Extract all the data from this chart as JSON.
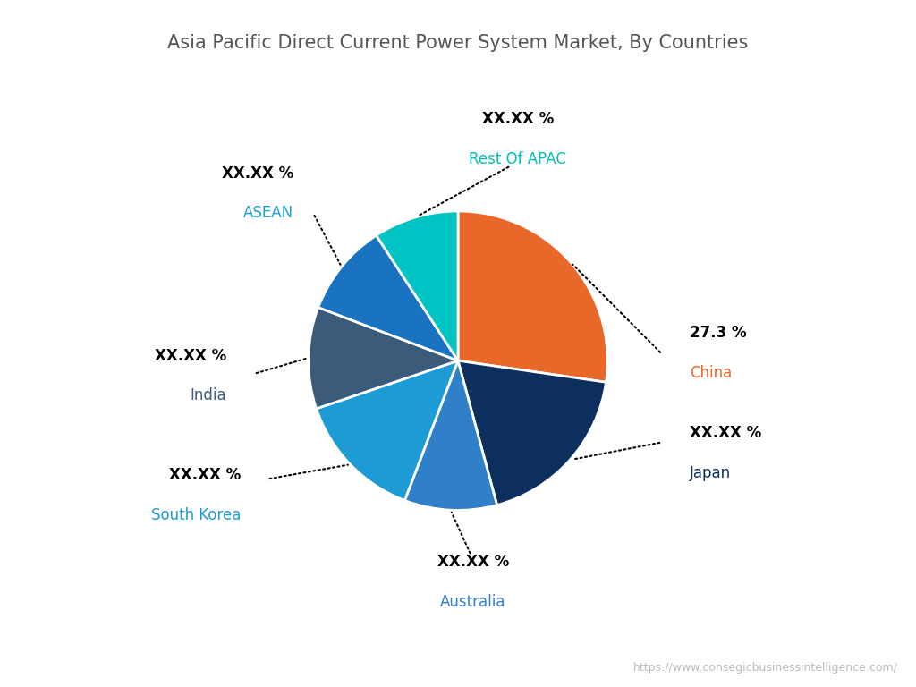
{
  "title": "Asia Pacific Direct Current Power System Market, By Countries",
  "watermark": "https://www.consegicbusinessintelligence.com/",
  "slices": [
    {
      "label": "China",
      "value": 27.3,
      "color": "#E8682A",
      "pct_text": "27.3 %",
      "label_color": "#E8682A"
    },
    {
      "label": "Japan",
      "value": 18.5,
      "color": "#0D2F5E",
      "pct_text": "XX.XX %",
      "label_color": "#0D2F5E"
    },
    {
      "label": "Australia",
      "value": 10.0,
      "color": "#2F80C8",
      "pct_text": "XX.XX %",
      "label_color": "#2F80C8"
    },
    {
      "label": "South Korea",
      "value": 14.0,
      "color": "#1D9BD4",
      "pct_text": "XX.XX %",
      "label_color": "#1D9BD4"
    },
    {
      "label": "India",
      "value": 11.0,
      "color": "#3B5B7A",
      "pct_text": "XX.XX %",
      "label_color": "#3B5B7A"
    },
    {
      "label": "ASEAN",
      "value": 10.0,
      "color": "#1A73C1",
      "pct_text": "XX.XX %",
      "label_color": "#1DA0D4"
    },
    {
      "label": "Rest Of APAC",
      "value": 9.2,
      "color": "#00C4C4",
      "pct_text": "XX.XX %",
      "label_color": "#00BFBF"
    }
  ],
  "title_color": "#555555",
  "title_fontsize": 15,
  "background_color": "#FFFFFF"
}
